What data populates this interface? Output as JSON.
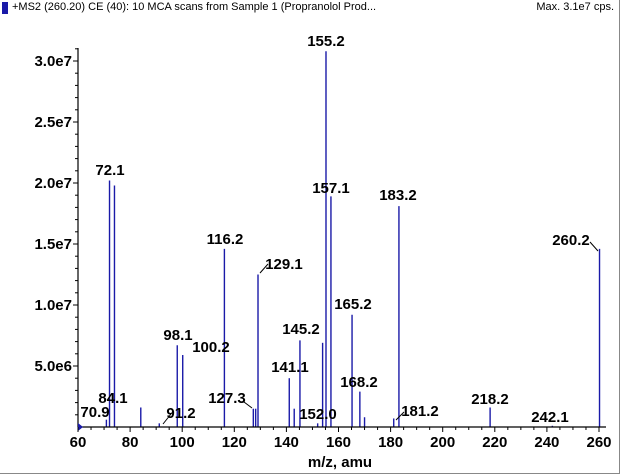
{
  "header": {
    "title": "+MS2 (260.20) CE (40): 10 MCA scans from Sample 1 (Propranolol Prod...",
    "max_label": "Max. 3.1e7 cps."
  },
  "colors": {
    "peak": "#1a1aa8",
    "axis": "#000000",
    "marker": "#1a1aa8"
  },
  "chart_data": {
    "type": "bar",
    "title": "",
    "xlabel": "m/z, amu",
    "ylabel": "",
    "xlim": [
      60,
      262
    ],
    "ylim": [
      0,
      31000000
    ],
    "x_ticks": [
      60,
      80,
      100,
      120,
      140,
      160,
      180,
      200,
      220,
      240,
      260
    ],
    "x_tick_labels": [
      "60",
      "80",
      "100",
      "120",
      "140",
      "160",
      "180",
      "200",
      "220",
      "240",
      "260"
    ],
    "y_ticks": [
      5000000,
      10000000,
      15000000,
      20000000,
      25000000,
      30000000
    ],
    "y_tick_labels": [
      "5.0e6",
      "1.0e7",
      "1.5e7",
      "2.0e7",
      "2.5e7",
      "3.0e7"
    ],
    "peaks": [
      {
        "mz": 70.9,
        "intensity": 600000
      },
      {
        "mz": 72.1,
        "intensity": 20200000
      },
      {
        "mz": 74.0,
        "intensity": 19800000
      },
      {
        "mz": 84.1,
        "intensity": 1600000
      },
      {
        "mz": 91.2,
        "intensity": 300000
      },
      {
        "mz": 98.1,
        "intensity": 6700000
      },
      {
        "mz": 100.2,
        "intensity": 5900000
      },
      {
        "mz": 116.2,
        "intensity": 14600000
      },
      {
        "mz": 127.3,
        "intensity": 1500000
      },
      {
        "mz": 128.2,
        "intensity": 1500000
      },
      {
        "mz": 129.1,
        "intensity": 12500000
      },
      {
        "mz": 141.1,
        "intensity": 4000000
      },
      {
        "mz": 143.0,
        "intensity": 1500000
      },
      {
        "mz": 145.2,
        "intensity": 7100000
      },
      {
        "mz": 152.0,
        "intensity": 300000
      },
      {
        "mz": 153.9,
        "intensity": 6900000
      },
      {
        "mz": 155.2,
        "intensity": 30800000
      },
      {
        "mz": 157.1,
        "intensity": 18900000
      },
      {
        "mz": 165.2,
        "intensity": 9200000
      },
      {
        "mz": 168.2,
        "intensity": 2900000
      },
      {
        "mz": 170.0,
        "intensity": 800000
      },
      {
        "mz": 181.2,
        "intensity": 700000
      },
      {
        "mz": 183.2,
        "intensity": 18100000
      },
      {
        "mz": 218.2,
        "intensity": 1600000
      },
      {
        "mz": 242.1,
        "intensity": 100000
      },
      {
        "mz": 260.2,
        "intensity": 14600000
      }
    ],
    "annotations": [
      {
        "text": "70.9",
        "mz": 70.9
      },
      {
        "text": "72.1",
        "mz": 72.1
      },
      {
        "text": "84.1",
        "mz": 84.1
      },
      {
        "text": "91.2",
        "mz": 91.2
      },
      {
        "text": "98.1",
        "mz": 98.1
      },
      {
        "text": "100.2",
        "mz": 100.2
      },
      {
        "text": "116.2",
        "mz": 116.2
      },
      {
        "text": "127.3",
        "mz": 127.3
      },
      {
        "text": "129.1",
        "mz": 129.1
      },
      {
        "text": "141.1",
        "mz": 141.1
      },
      {
        "text": "145.2",
        "mz": 145.2
      },
      {
        "text": "152.0",
        "mz": 152.0
      },
      {
        "text": "155.2",
        "mz": 155.2
      },
      {
        "text": "157.1",
        "mz": 157.1
      },
      {
        "text": "165.2",
        "mz": 165.2
      },
      {
        "text": "168.2",
        "mz": 168.2
      },
      {
        "text": "181.2",
        "mz": 181.2
      },
      {
        "text": "183.2",
        "mz": 183.2
      },
      {
        "text": "218.2",
        "mz": 218.2
      },
      {
        "text": "242.1",
        "mz": 242.1
      },
      {
        "text": "260.2",
        "mz": 260.2
      }
    ]
  }
}
